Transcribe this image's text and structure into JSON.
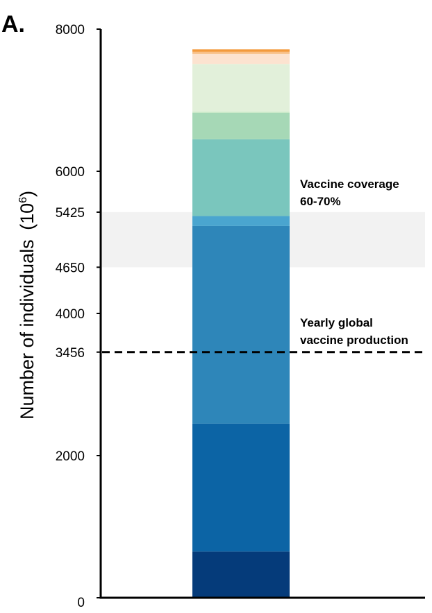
{
  "panel_label": "A.",
  "chart_data": {
    "type": "bar",
    "stacked": true,
    "ylabel_main": "Number of individuals",
    "ylabel_paren_open": "(",
    "ylabel_base": "10",
    "ylabel_exp": "6",
    "ylabel_paren_close": ")",
    "ylim": [
      0,
      8000
    ],
    "yticks": [
      0,
      2000,
      3456,
      4000,
      4650,
      5425,
      6000,
      8000
    ],
    "segments": [
      {
        "value": 650,
        "color": "#053b7a"
      },
      {
        "value": 1800,
        "color": "#0c64a5"
      },
      {
        "value": 2780,
        "color": "#2e86b9"
      },
      {
        "value": 140,
        "color": "#4aa5cf"
      },
      {
        "value": 1080,
        "color": "#7ac6bd"
      },
      {
        "value": 370,
        "color": "#a6d8b6"
      },
      {
        "value": 20,
        "color": "#c9e8c7"
      },
      {
        "value": 670,
        "color": "#e2f0da"
      },
      {
        "value": 140,
        "color": "#fce3d0"
      },
      {
        "value": 30,
        "color": "#f8c089"
      },
      {
        "value": 35,
        "color": "#f39a3d"
      }
    ],
    "band": {
      "from": 4650,
      "to": 5425,
      "color": "#f2f2f2",
      "label_line1": "Vaccine coverage",
      "label_line2": "60-70%"
    },
    "reference_line": {
      "value": 3456,
      "style": "dashed",
      "label_line1": "Yearly global",
      "label_line2": "vaccine production"
    },
    "grid": false,
    "legend": "none"
  }
}
